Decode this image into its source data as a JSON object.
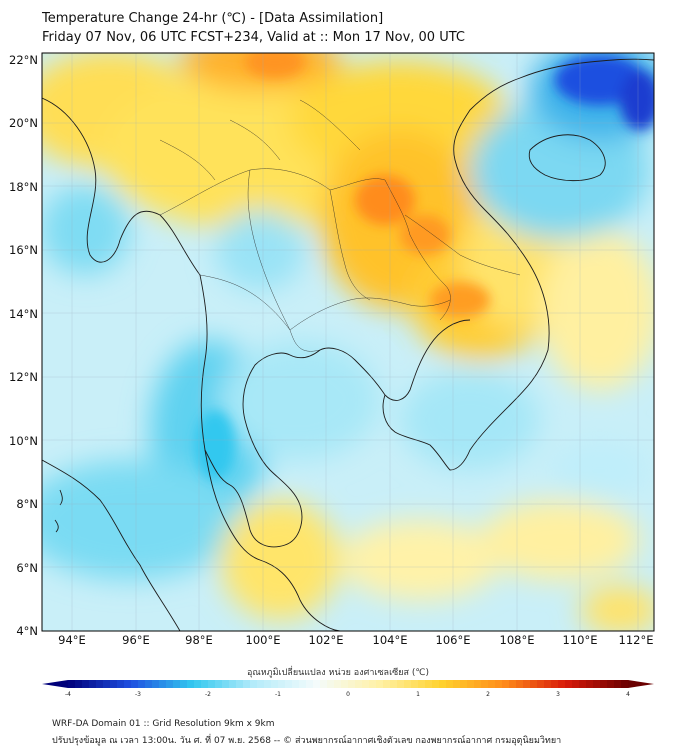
{
  "header": {
    "title": "Temperature Change 24-hr (℃) - [Data Assimilation]",
    "subtitle": "Friday 07 Nov, 06 UTC FCST+234, Valid at :: Mon 17 Nov, 00 UTC"
  },
  "axes": {
    "lat_labels": [
      "4°N",
      "6°N",
      "8°N",
      "10°N",
      "12°N",
      "14°N",
      "16°N",
      "18°N",
      "20°N",
      "22°N"
    ],
    "lon_labels": [
      "94°E",
      "96°E",
      "98°E",
      "100°E",
      "102°E",
      "104°E",
      "106°E",
      "108°E",
      "110°E",
      "112°E"
    ]
  },
  "colorbar": {
    "title": "อุณหภูมิเปลี่ยนแปลง หน่วย องศาเซลเซียส (℃)",
    "ticks": [
      "-4",
      "-3",
      "-2",
      "-1",
      "0",
      "1",
      "2",
      "3",
      "4"
    ],
    "tick_values": [
      -4,
      -3,
      -2,
      -1,
      0,
      1,
      2,
      3,
      4
    ],
    "colors": {
      "deep_blue": "#00007a",
      "blue": "#1f4fe0",
      "cyan": "#33c8ef",
      "light_cyan": "#b5ecfa",
      "white": "#f4fbfb",
      "light_yellow": "#fff1a6",
      "yellow": "#ffd22e",
      "orange": "#ff8c1a",
      "red": "#d81a0a",
      "dark_red": "#6a0000"
    }
  },
  "footer": {
    "line1": "WRF-DA Domain 01 :: Grid Resolution 9km x 9km",
    "line2": "ปรับปรุงข้อมูล ณ เวลา 13:00น. วัน ศ. ที่ 07 พ.ย. 2568 -- © ส่วนพยากรณ์อากาศเชิงตัวเลข กองพยากรณ์อากาศ กรมอุตุนิยมวิทยา"
  }
}
